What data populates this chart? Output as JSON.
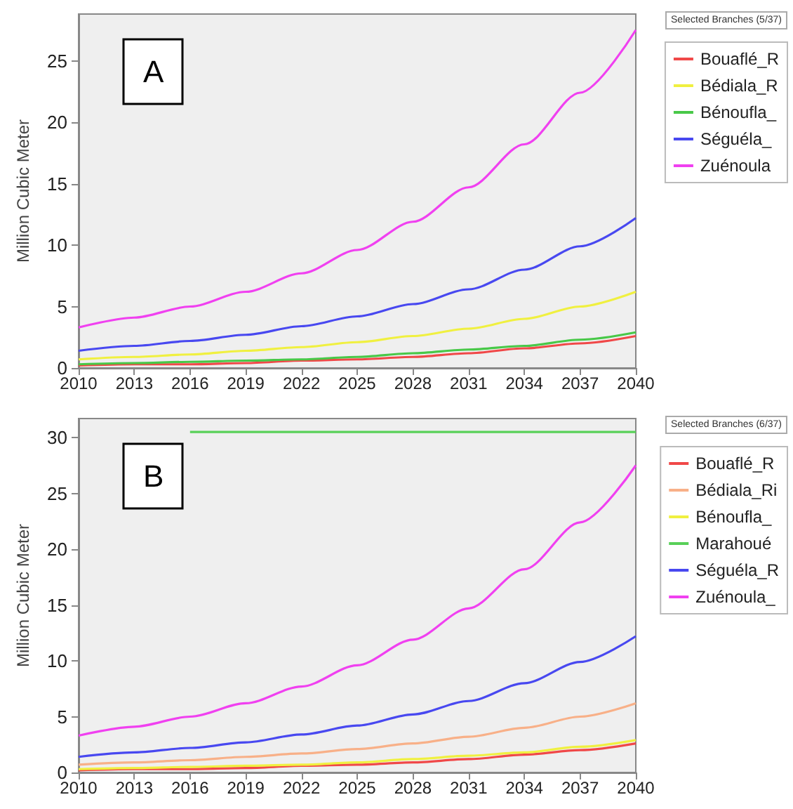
{
  "chart_data": [
    {
      "type": "line",
      "ylabel": "Million Cubic Meter",
      "legend_title": "Selected Branches (5/37)",
      "annotations": [
        "A"
      ],
      "legend": "right",
      "x": [
        2010,
        2013,
        2016,
        2019,
        2022,
        2025,
        2028,
        2031,
        2034,
        2037,
        2040
      ],
      "xlim": [
        2010,
        2040
      ],
      "xticks": [
        2010,
        2013,
        2016,
        2019,
        2022,
        2025,
        2028,
        2031,
        2034,
        2037,
        2040
      ],
      "ylim": [
        0,
        28.8
      ],
      "yticks": [
        0,
        5,
        10,
        15,
        20,
        25
      ],
      "series": [
        {
          "name": "Bouaflé_R",
          "color": "#f04848",
          "values": [
            0.2,
            0.3,
            0.3,
            0.4,
            0.6,
            0.7,
            0.9,
            1.2,
            1.6,
            2.0,
            2.6
          ]
        },
        {
          "name": "Bédiala_R",
          "color": "#f0f040",
          "values": [
            0.7,
            0.9,
            1.1,
            1.4,
            1.7,
            2.1,
            2.6,
            3.2,
            4.0,
            5.0,
            6.2
          ]
        },
        {
          "name": "Bénoufla_",
          "color": "#48c848",
          "values": [
            0.3,
            0.4,
            0.5,
            0.6,
            0.7,
            0.9,
            1.2,
            1.5,
            1.8,
            2.3,
            2.9
          ]
        },
        {
          "name": "Séguéla_",
          "color": "#4848f0",
          "values": [
            1.4,
            1.8,
            2.2,
            2.7,
            3.4,
            4.2,
            5.2,
            6.4,
            8.0,
            9.9,
            12.2
          ]
        },
        {
          "name": "Zuénoula",
          "color": "#f040f0",
          "values": [
            3.3,
            4.1,
            5.0,
            6.2,
            7.7,
            9.6,
            11.9,
            14.7,
            18.2,
            22.4,
            27.5
          ]
        }
      ]
    },
    {
      "type": "line",
      "ylabel": "Million Cubic Meter",
      "legend_title": "Selected Branches (6/37)",
      "annotations": [
        "B"
      ],
      "legend": "right",
      "x": [
        2010,
        2013,
        2016,
        2019,
        2022,
        2025,
        2028,
        2031,
        2034,
        2037,
        2040
      ],
      "xlim": [
        2010,
        2040
      ],
      "xticks": [
        2010,
        2013,
        2016,
        2019,
        2022,
        2025,
        2028,
        2031,
        2034,
        2037,
        2040
      ],
      "ylim": [
        0,
        31.7
      ],
      "yticks": [
        0,
        5,
        10,
        15,
        20,
        25,
        30
      ],
      "series": [
        {
          "name": "Bouaflé_R",
          "color": "#f04848",
          "values": [
            0.2,
            0.3,
            0.3,
            0.4,
            0.6,
            0.7,
            0.9,
            1.2,
            1.6,
            2.0,
            2.6
          ]
        },
        {
          "name": "Bédiala_Ri",
          "color": "#f8b088",
          "values": [
            0.7,
            0.9,
            1.1,
            1.4,
            1.7,
            2.1,
            2.6,
            3.2,
            4.0,
            5.0,
            6.2
          ]
        },
        {
          "name": "Bénoufla_",
          "color": "#f0f040",
          "values": [
            0.3,
            0.4,
            0.5,
            0.6,
            0.7,
            0.9,
            1.2,
            1.5,
            1.8,
            2.3,
            2.9
          ]
        },
        {
          "name": "Marahoué",
          "color": "#58d058",
          "x": [
            2016,
            2040
          ],
          "values": [
            30.5,
            30.5
          ]
        },
        {
          "name": "Séguéla_R",
          "color": "#4848f0",
          "values": [
            1.4,
            1.8,
            2.2,
            2.7,
            3.4,
            4.2,
            5.2,
            6.4,
            8.0,
            9.9,
            12.2
          ]
        },
        {
          "name": "Zuénoula_",
          "color": "#f040f0",
          "values": [
            3.3,
            4.1,
            5.0,
            6.2,
            7.7,
            9.6,
            11.9,
            14.7,
            18.2,
            22.4,
            27.5
          ]
        }
      ]
    }
  ]
}
